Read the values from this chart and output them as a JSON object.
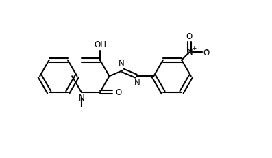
{
  "background_color": "#ffffff",
  "line_color": "#000000",
  "line_width": 1.5,
  "font_size": 8.5,
  "figsize": [
    3.97,
    2.32
  ],
  "dpi": 100,
  "xlim": [
    0,
    10
  ],
  "ylim": [
    0,
    6
  ],
  "ring_r": 0.72
}
